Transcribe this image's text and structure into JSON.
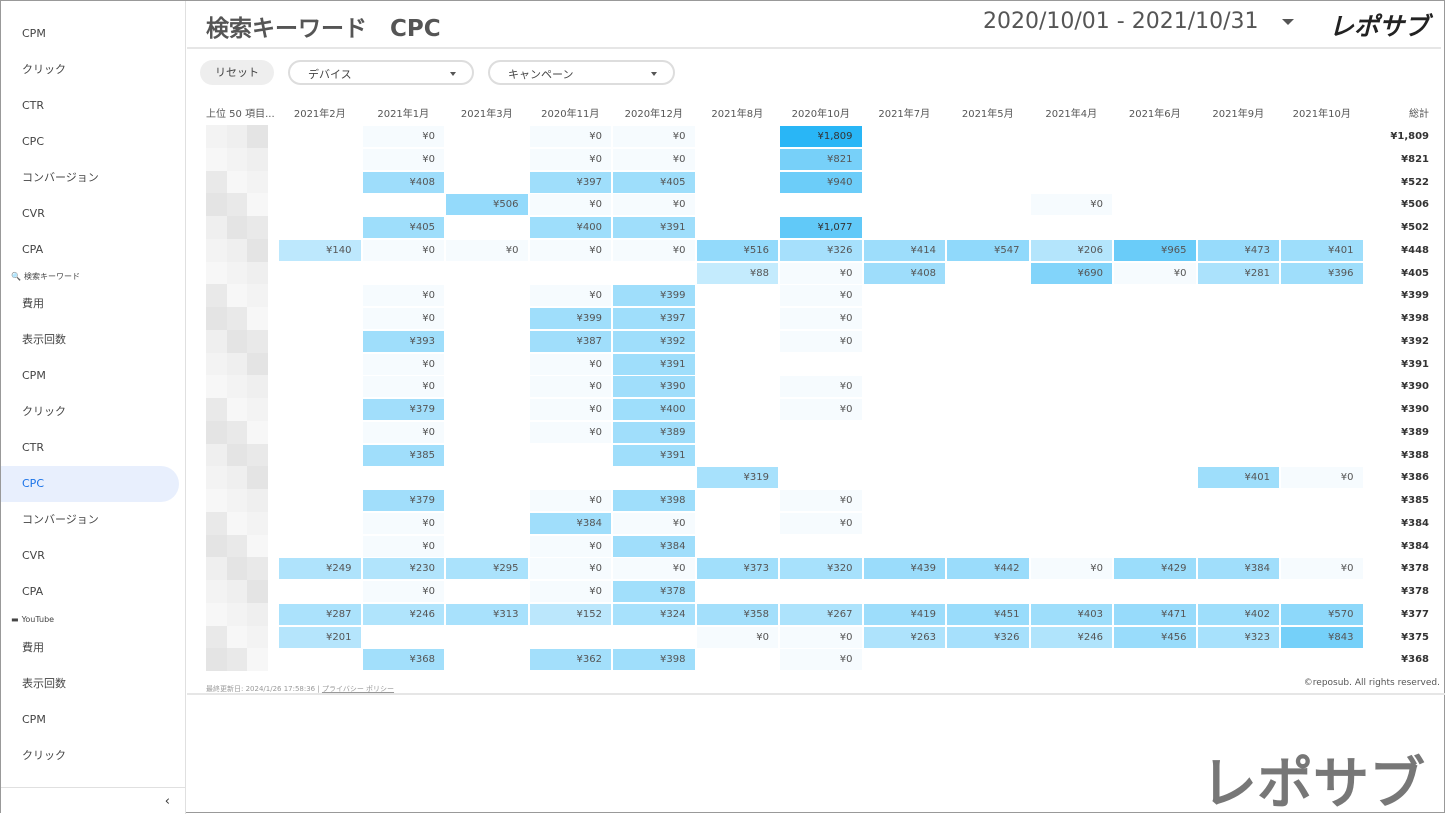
{
  "sidebar": {
    "items_top": [
      "CPM",
      "クリック",
      "CTR",
      "CPC",
      "コンバージョン",
      "CVR",
      "CPA"
    ],
    "section1": "検索キーワード",
    "items_mid": [
      "費用",
      "表示回数",
      "CPM",
      "クリック",
      "CTR",
      "CPC",
      "コンバージョン",
      "CVR",
      "CPA"
    ],
    "active_index": 5,
    "section2": "YouTube",
    "items_bottom": [
      "費用",
      "表示回数",
      "CPM",
      "クリック"
    ],
    "collapse": "‹"
  },
  "header": {
    "title": "検索キーワード　CPC",
    "date_range": "2020/10/01 - 2021/10/31",
    "logo": "レポサブ"
  },
  "filters": {
    "reset": "リセット",
    "device": "デバイス",
    "campaign": "キャンペーン"
  },
  "table": {
    "label_header": "上位 50 項目...",
    "columns": [
      "2021年2月",
      "2021年1月",
      "2021年3月",
      "2020年11月",
      "2020年12月",
      "2021年8月",
      "2020年10月",
      "2021年7月",
      "2021年5月",
      "2021年4月",
      "2021年6月",
      "2021年9月",
      "2021年10月"
    ],
    "total_header": "総計",
    "heat_color": "#29b6f6",
    "rows": [
      [
        null,
        0,
        null,
        0,
        0,
        null,
        1809,
        null,
        null,
        null,
        null,
        null,
        null,
        1809
      ],
      [
        null,
        0,
        null,
        0,
        0,
        null,
        821,
        null,
        null,
        null,
        null,
        null,
        null,
        821
      ],
      [
        null,
        408,
        null,
        397,
        405,
        null,
        940,
        null,
        null,
        null,
        null,
        null,
        null,
        522
      ],
      [
        null,
        null,
        506,
        0,
        0,
        null,
        null,
        null,
        null,
        0,
        null,
        null,
        null,
        506
      ],
      [
        null,
        405,
        null,
        400,
        391,
        null,
        1077,
        null,
        null,
        null,
        null,
        null,
        null,
        502
      ],
      [
        140,
        0,
        0,
        0,
        0,
        516,
        326,
        414,
        547,
        206,
        965,
        473,
        401,
        448
      ],
      [
        null,
        null,
        null,
        null,
        null,
        88,
        0,
        408,
        null,
        690,
        0,
        281,
        396,
        405
      ],
      [
        null,
        0,
        null,
        0,
        399,
        null,
        0,
        null,
        null,
        null,
        null,
        null,
        null,
        399
      ],
      [
        null,
        0,
        null,
        399,
        397,
        null,
        0,
        null,
        null,
        null,
        null,
        null,
        null,
        398
      ],
      [
        null,
        393,
        null,
        387,
        392,
        null,
        0,
        null,
        null,
        null,
        null,
        null,
        null,
        392
      ],
      [
        null,
        0,
        null,
        0,
        391,
        null,
        null,
        null,
        null,
        null,
        null,
        null,
        null,
        391
      ],
      [
        null,
        0,
        null,
        0,
        390,
        null,
        0,
        null,
        null,
        null,
        null,
        null,
        null,
        390
      ],
      [
        null,
        379,
        null,
        0,
        400,
        null,
        0,
        null,
        null,
        null,
        null,
        null,
        null,
        390
      ],
      [
        null,
        0,
        null,
        0,
        389,
        null,
        null,
        null,
        null,
        null,
        null,
        null,
        null,
        389
      ],
      [
        null,
        385,
        null,
        null,
        391,
        null,
        null,
        null,
        null,
        null,
        null,
        null,
        null,
        388
      ],
      [
        null,
        null,
        null,
        null,
        null,
        319,
        null,
        null,
        null,
        null,
        null,
        401,
        0,
        386
      ],
      [
        null,
        379,
        null,
        0,
        398,
        null,
        0,
        null,
        null,
        null,
        null,
        null,
        null,
        385
      ],
      [
        null,
        0,
        null,
        384,
        0,
        null,
        0,
        null,
        null,
        null,
        null,
        null,
        null,
        384
      ],
      [
        null,
        0,
        null,
        0,
        384,
        null,
        null,
        null,
        null,
        null,
        null,
        null,
        null,
        384
      ],
      [
        249,
        230,
        295,
        0,
        0,
        373,
        320,
        439,
        442,
        0,
        429,
        384,
        0,
        378
      ],
      [
        null,
        0,
        null,
        0,
        378,
        null,
        null,
        null,
        null,
        null,
        null,
        null,
        null,
        378
      ],
      [
        287,
        246,
        313,
        152,
        324,
        358,
        267,
        419,
        451,
        403,
        471,
        402,
        570,
        377
      ],
      [
        201,
        null,
        null,
        null,
        null,
        0,
        0,
        263,
        326,
        246,
        456,
        323,
        843,
        375
      ],
      [
        null,
        368,
        null,
        362,
        398,
        null,
        0,
        null,
        null,
        null,
        null,
        null,
        null,
        368
      ]
    ]
  },
  "footer": {
    "updated": "最終更新日: 2024/1/26 17:58:36 | ",
    "privacy": "プライバシー ポリシー",
    "copyright": "©reposub. All rights reserved."
  },
  "watermark": "レポサブ"
}
